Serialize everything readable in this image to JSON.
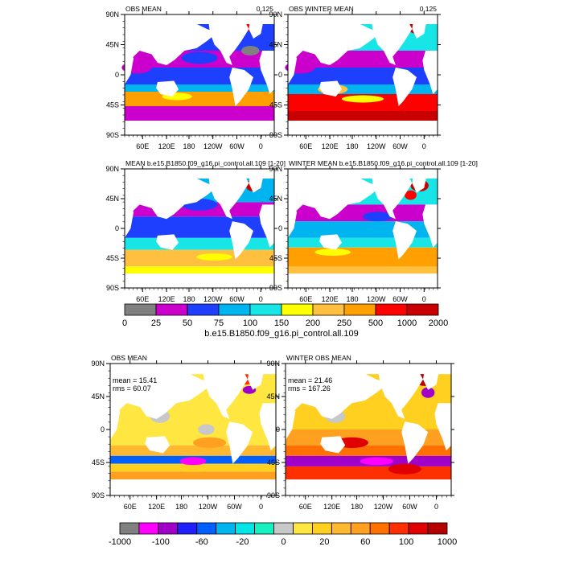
{
  "panels": [
    {
      "id": "p1",
      "title": "OBS MEAN",
      "right": "0.125",
      "set": "top",
      "variant": "obs"
    },
    {
      "id": "p2",
      "title": "OBS WINTER MEAN",
      "right": "0.125",
      "set": "top",
      "variant": "obswinter"
    },
    {
      "id": "p3",
      "title": "MEAN b.e15.B1850.f09_g16.pi_control.all.109 [1-20]",
      "right": "",
      "set": "top",
      "variant": "mod"
    },
    {
      "id": "p4",
      "title": "WINTER MEAN b.e15.B1850.f09_g16.pi_control.all.109 [1-20]",
      "right": "",
      "set": "top",
      "variant": "modwinter"
    },
    {
      "id": "p5",
      "title": "OBS MEAN",
      "right": "",
      "set": "diff",
      "variant": "diff",
      "mean_label": "mean = 15.41",
      "rms_label": "rms = 60.07"
    },
    {
      "id": "p6",
      "title": "WINTER OBS MEAN",
      "right": "",
      "set": "diff",
      "variant": "diffwinter",
      "mean_label": "mean = 21.46",
      "rms_label": "rms = 167.26"
    }
  ],
  "axes": {
    "lon_labels": [
      "60E",
      "120E",
      "180",
      "120W",
      "60W",
      "0"
    ],
    "lat_labels": [
      "90N",
      "45N",
      "0",
      "45S",
      "90S"
    ]
  },
  "colorbar_top": {
    "labels": [
      "0",
      "25",
      "50",
      "75",
      "100",
      "150",
      "200",
      "250",
      "500",
      "1000",
      "2000"
    ],
    "colors": [
      "#808080",
      "#cc00cc",
      "#1f3fff",
      "#00b4f0",
      "#18e6e6",
      "#ffff00",
      "#ffc040",
      "#ffa000",
      "#ff0000",
      "#c80000"
    ],
    "title": "b.e15.B1850.f09_g16.pi_control.all.109"
  },
  "colorbar_diff": {
    "labels": [
      "-1000",
      "-100",
      "-60",
      "-20",
      "0",
      "20",
      "60",
      "100",
      "1000"
    ],
    "colors": [
      "#808080",
      "#ff00ff",
      "#a000c8",
      "#2020ff",
      "#0060ff",
      "#00b4f0",
      "#00e6e6",
      "#18f0c0",
      "#c8c8c8",
      "#ffe640",
      "#ffd020",
      "#ffb830",
      "#ffa020",
      "#ff7000",
      "#ff3000",
      "#e00000",
      "#b40000"
    ]
  },
  "colors": {
    "land": "#ffffff",
    "frame": "#000000"
  }
}
